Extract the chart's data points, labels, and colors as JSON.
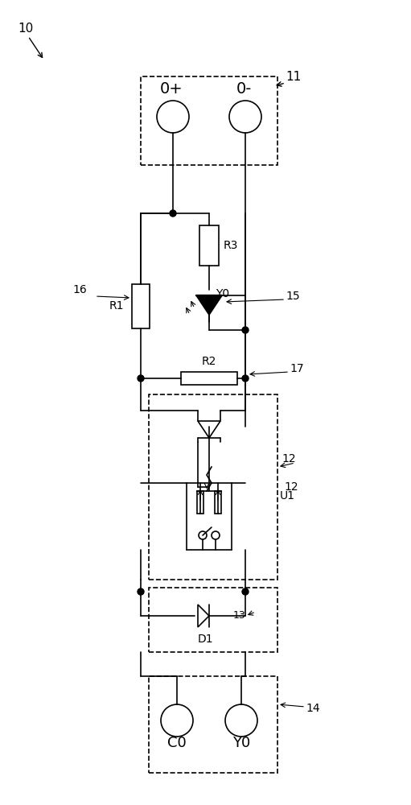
{
  "fig_width": 5.11,
  "fig_height": 10.0,
  "dpi": 100,
  "bg_color": "#ffffff",
  "line_color": "#000000",
  "line_width": 1.2,
  "dash_pattern": [
    4,
    3
  ],
  "label_10": "10",
  "label_11": "11",
  "label_12": "12",
  "label_13": "13",
  "label_14": "14",
  "label_15": "15",
  "label_16": "16",
  "label_17": "17",
  "label_R1": "R1",
  "label_R2": "R2",
  "label_R3": "R3",
  "label_U1": "U1",
  "label_D1": "D1",
  "label_Y0_diode": "Y0",
  "label_0plus": "0+",
  "label_0minus": "0-",
  "label_C0": "C0",
  "label_Y0": "Y0"
}
